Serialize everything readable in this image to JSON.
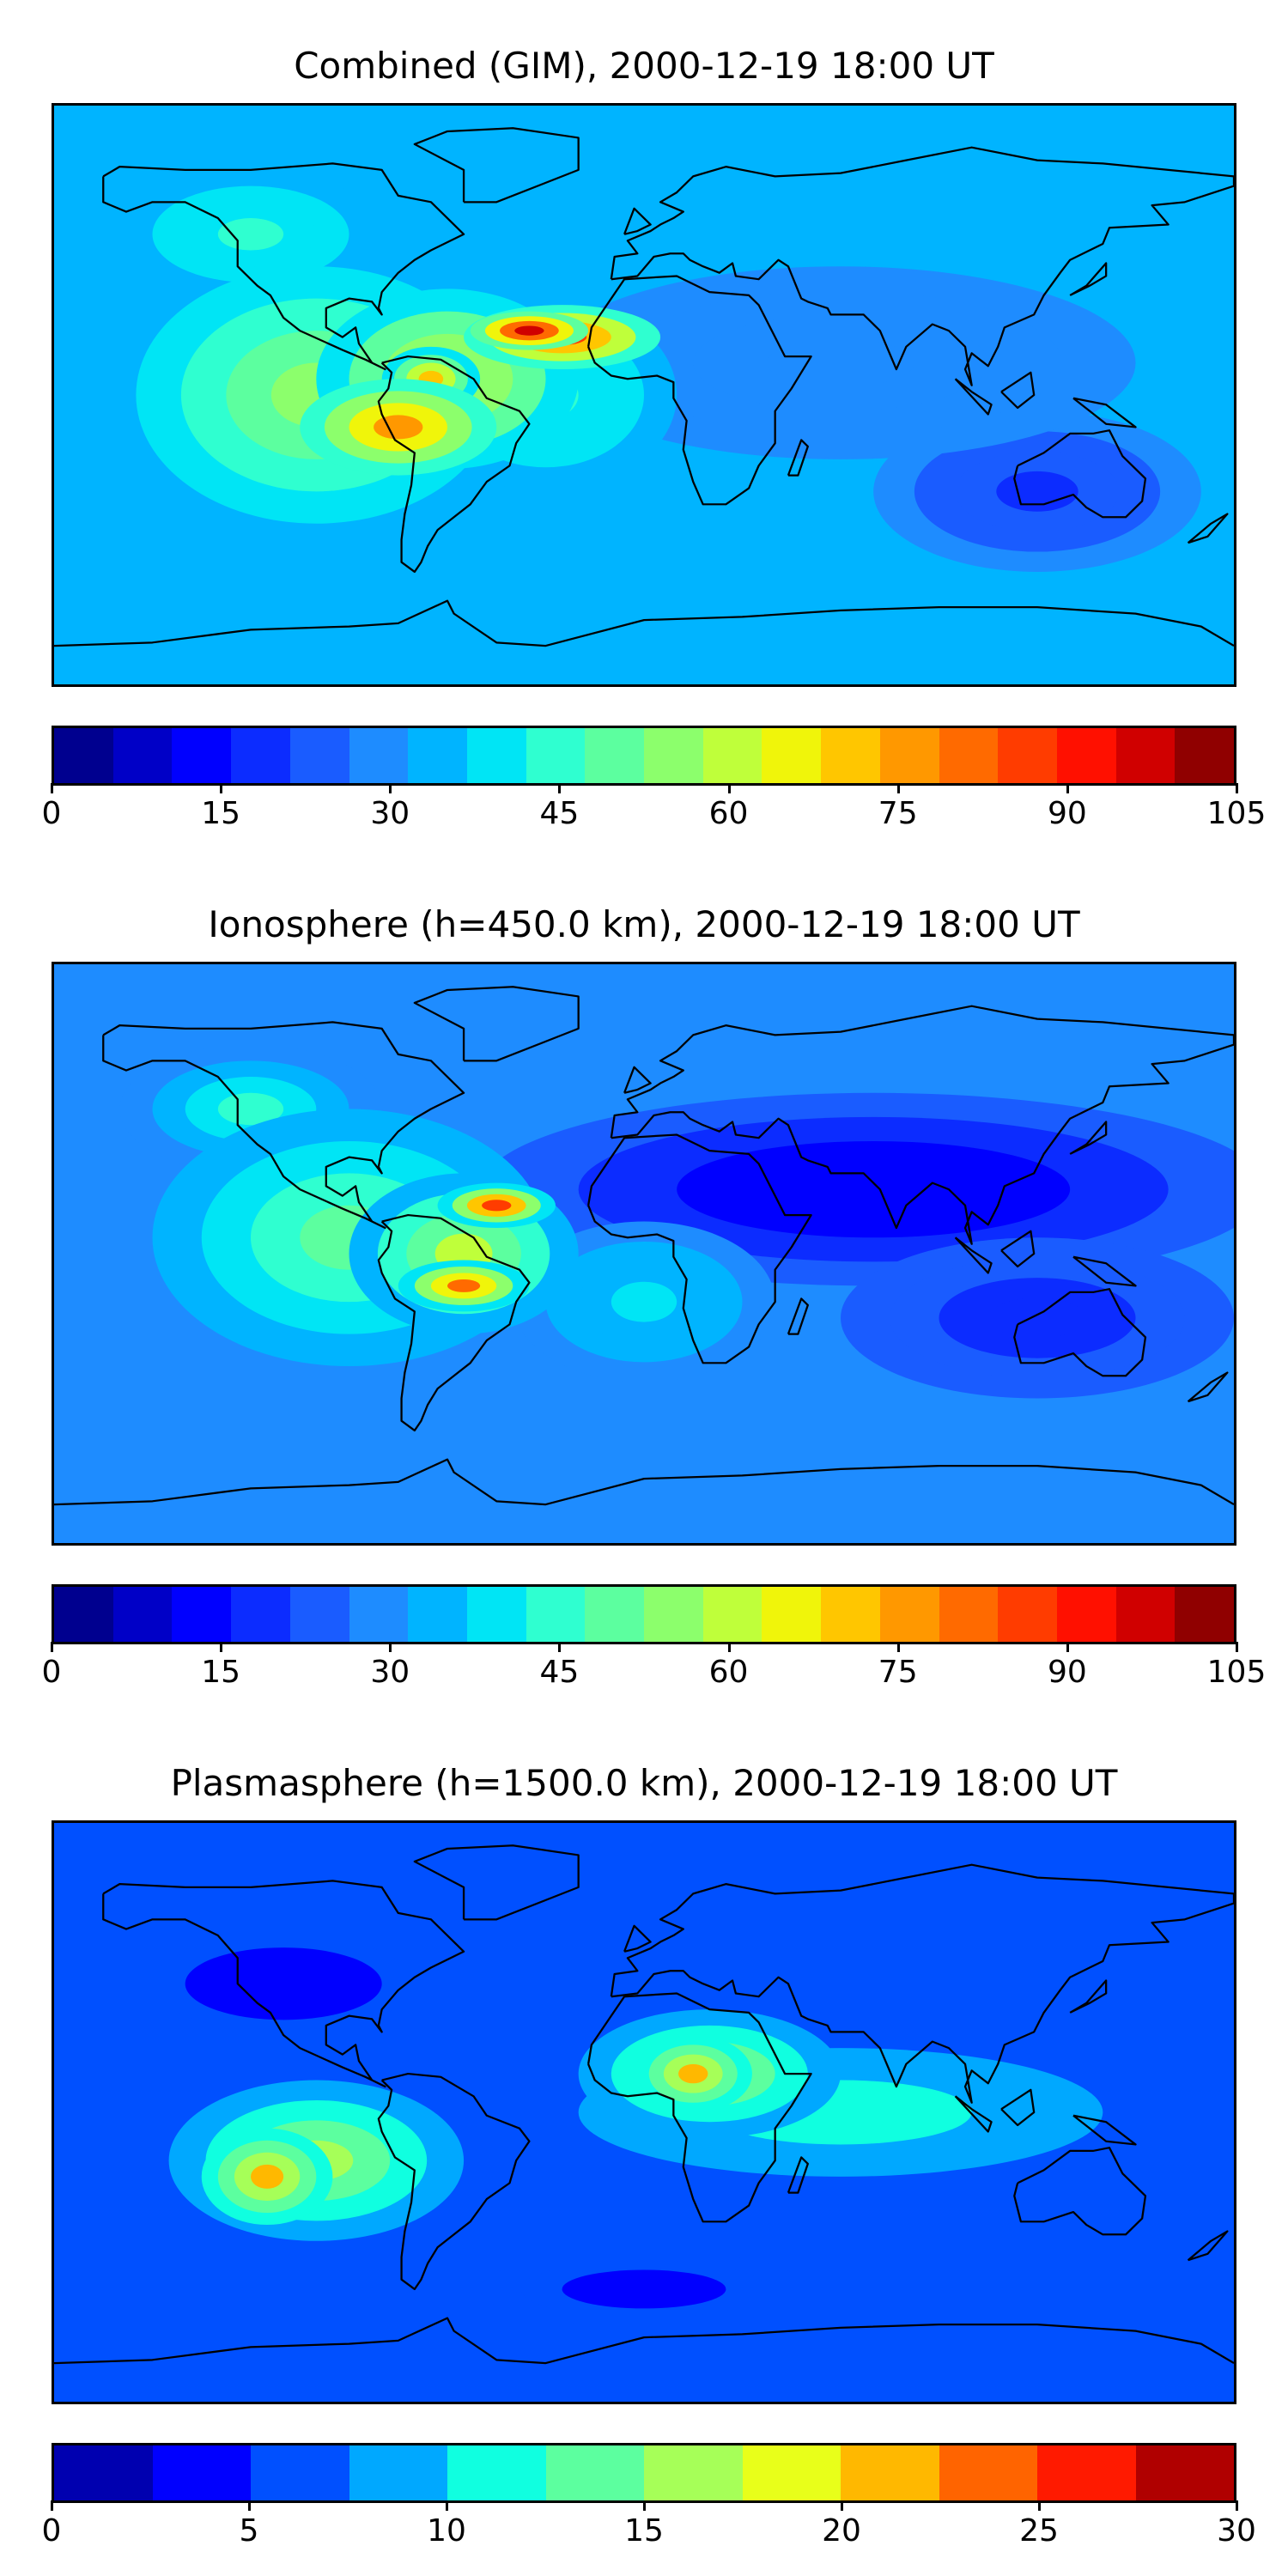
{
  "panels": [
    {
      "title": "Combined (GIM), 2000-12-19 18:00 UT",
      "colorbar": {
        "colors": [
          "#00008f",
          "#0000c7",
          "#0000ff",
          "#0c2cff",
          "#1a5cff",
          "#1e8cff",
          "#00b4ff",
          "#00e5f5",
          "#2fffd0",
          "#5cff9f",
          "#8cff6c",
          "#bfff3a",
          "#f0f50a",
          "#ffc600",
          "#ff9800",
          "#ff6a00",
          "#ff3c00",
          "#ff1000",
          "#d00000",
          "#900000"
        ],
        "ticks": [
          "0",
          "15",
          "30",
          "45",
          "60",
          "75",
          "90",
          "105"
        ],
        "range": [
          0,
          105
        ]
      },
      "blobs": [
        {
          "lon": -100,
          "lat": 0,
          "rx": 55,
          "ry": 40,
          "level": 0.5
        },
        {
          "lon": -60,
          "lat": 5,
          "rx": 40,
          "ry": 28,
          "level": 0.62
        },
        {
          "lon": -75,
          "lat": -10,
          "rx": 30,
          "ry": 15,
          "level": 0.72
        },
        {
          "lon": -25,
          "lat": 18,
          "rx": 30,
          "ry": 10,
          "level": 0.8
        },
        {
          "lon": -35,
          "lat": 20,
          "rx": 18,
          "ry": 6,
          "level": 0.92
        },
        {
          "lon": -65,
          "lat": 5,
          "rx": 15,
          "ry": 10,
          "level": 0.65
        },
        {
          "lon": -30,
          "lat": 0,
          "rx": 40,
          "ry": 30,
          "level": 0.42
        },
        {
          "lon": 60,
          "lat": 10,
          "rx": 90,
          "ry": 30,
          "level": 0.28
        },
        {
          "lon": 120,
          "lat": -30,
          "rx": 50,
          "ry": 25,
          "level": 0.18
        },
        {
          "lon": -120,
          "lat": 50,
          "rx": 40,
          "ry": 20,
          "level": 0.4
        }
      ],
      "background_level": 0.3
    },
    {
      "title": "Ionosphere  (h=450.0 km), 2000-12-19 18:00 UT",
      "colorbar": {
        "colors": [
          "#00008f",
          "#0000c7",
          "#0000ff",
          "#0c2cff",
          "#1a5cff",
          "#1e8cff",
          "#00b4ff",
          "#00e5f5",
          "#2fffd0",
          "#5cff9f",
          "#8cff6c",
          "#bfff3a",
          "#f0f50a",
          "#ffc600",
          "#ff9800",
          "#ff6a00",
          "#ff3c00",
          "#ff1000",
          "#d00000",
          "#900000"
        ],
        "ticks": [
          "0",
          "15",
          "30",
          "45",
          "60",
          "75",
          "90",
          "105"
        ],
        "range": [
          0,
          105
        ]
      },
      "blobs": [
        {
          "lon": -90,
          "lat": 5,
          "rx": 60,
          "ry": 40,
          "level": 0.48
        },
        {
          "lon": -55,
          "lat": 0,
          "rx": 35,
          "ry": 25,
          "level": 0.58
        },
        {
          "lon": -45,
          "lat": 15,
          "rx": 18,
          "ry": 7,
          "level": 0.8
        },
        {
          "lon": -55,
          "lat": -10,
          "rx": 20,
          "ry": 8,
          "level": 0.75
        },
        {
          "lon": -120,
          "lat": 45,
          "rx": 40,
          "ry": 20,
          "level": 0.4
        },
        {
          "lon": 0,
          "lat": -15,
          "rx": 40,
          "ry": 25,
          "level": 0.35
        },
        {
          "lon": 70,
          "lat": 20,
          "rx": 120,
          "ry": 30,
          "level": 0.1
        },
        {
          "lon": 120,
          "lat": -20,
          "rx": 60,
          "ry": 25,
          "level": 0.18
        }
      ],
      "background_level": 0.25
    },
    {
      "title": "Plasmasphere (h=1500.0 km), 2000-12-19 18:00 UT",
      "colorbar": {
        "colors": [
          "#0000b0",
          "#0000ff",
          "#0050ff",
          "#00a8ff",
          "#10ffe0",
          "#5cff9f",
          "#a6ff58",
          "#e8ff1a",
          "#ffb800",
          "#ff6400",
          "#ff1a00",
          "#b00000"
        ],
        "ticks": [
          "0",
          "5",
          "10",
          "15",
          "20",
          "25",
          "30"
        ],
        "range": [
          0,
          30
        ]
      },
      "blobs": [
        {
          "lon": -100,
          "lat": -15,
          "rx": 45,
          "ry": 25,
          "level": 0.55
        },
        {
          "lon": -115,
          "lat": -20,
          "rx": 20,
          "ry": 15,
          "level": 0.68
        },
        {
          "lon": 20,
          "lat": 12,
          "rx": 40,
          "ry": 20,
          "level": 0.55
        },
        {
          "lon": 15,
          "lat": 12,
          "rx": 18,
          "ry": 12,
          "level": 0.68
        },
        {
          "lon": 60,
          "lat": 0,
          "rx": 80,
          "ry": 20,
          "level": 0.4
        },
        {
          "lon": -110,
          "lat": 40,
          "rx": 40,
          "ry": 15,
          "level": 0.1
        },
        {
          "lon": 0,
          "lat": -55,
          "rx": 50,
          "ry": 12,
          "level": 0.12
        }
      ],
      "background_level": 0.22
    }
  ]
}
